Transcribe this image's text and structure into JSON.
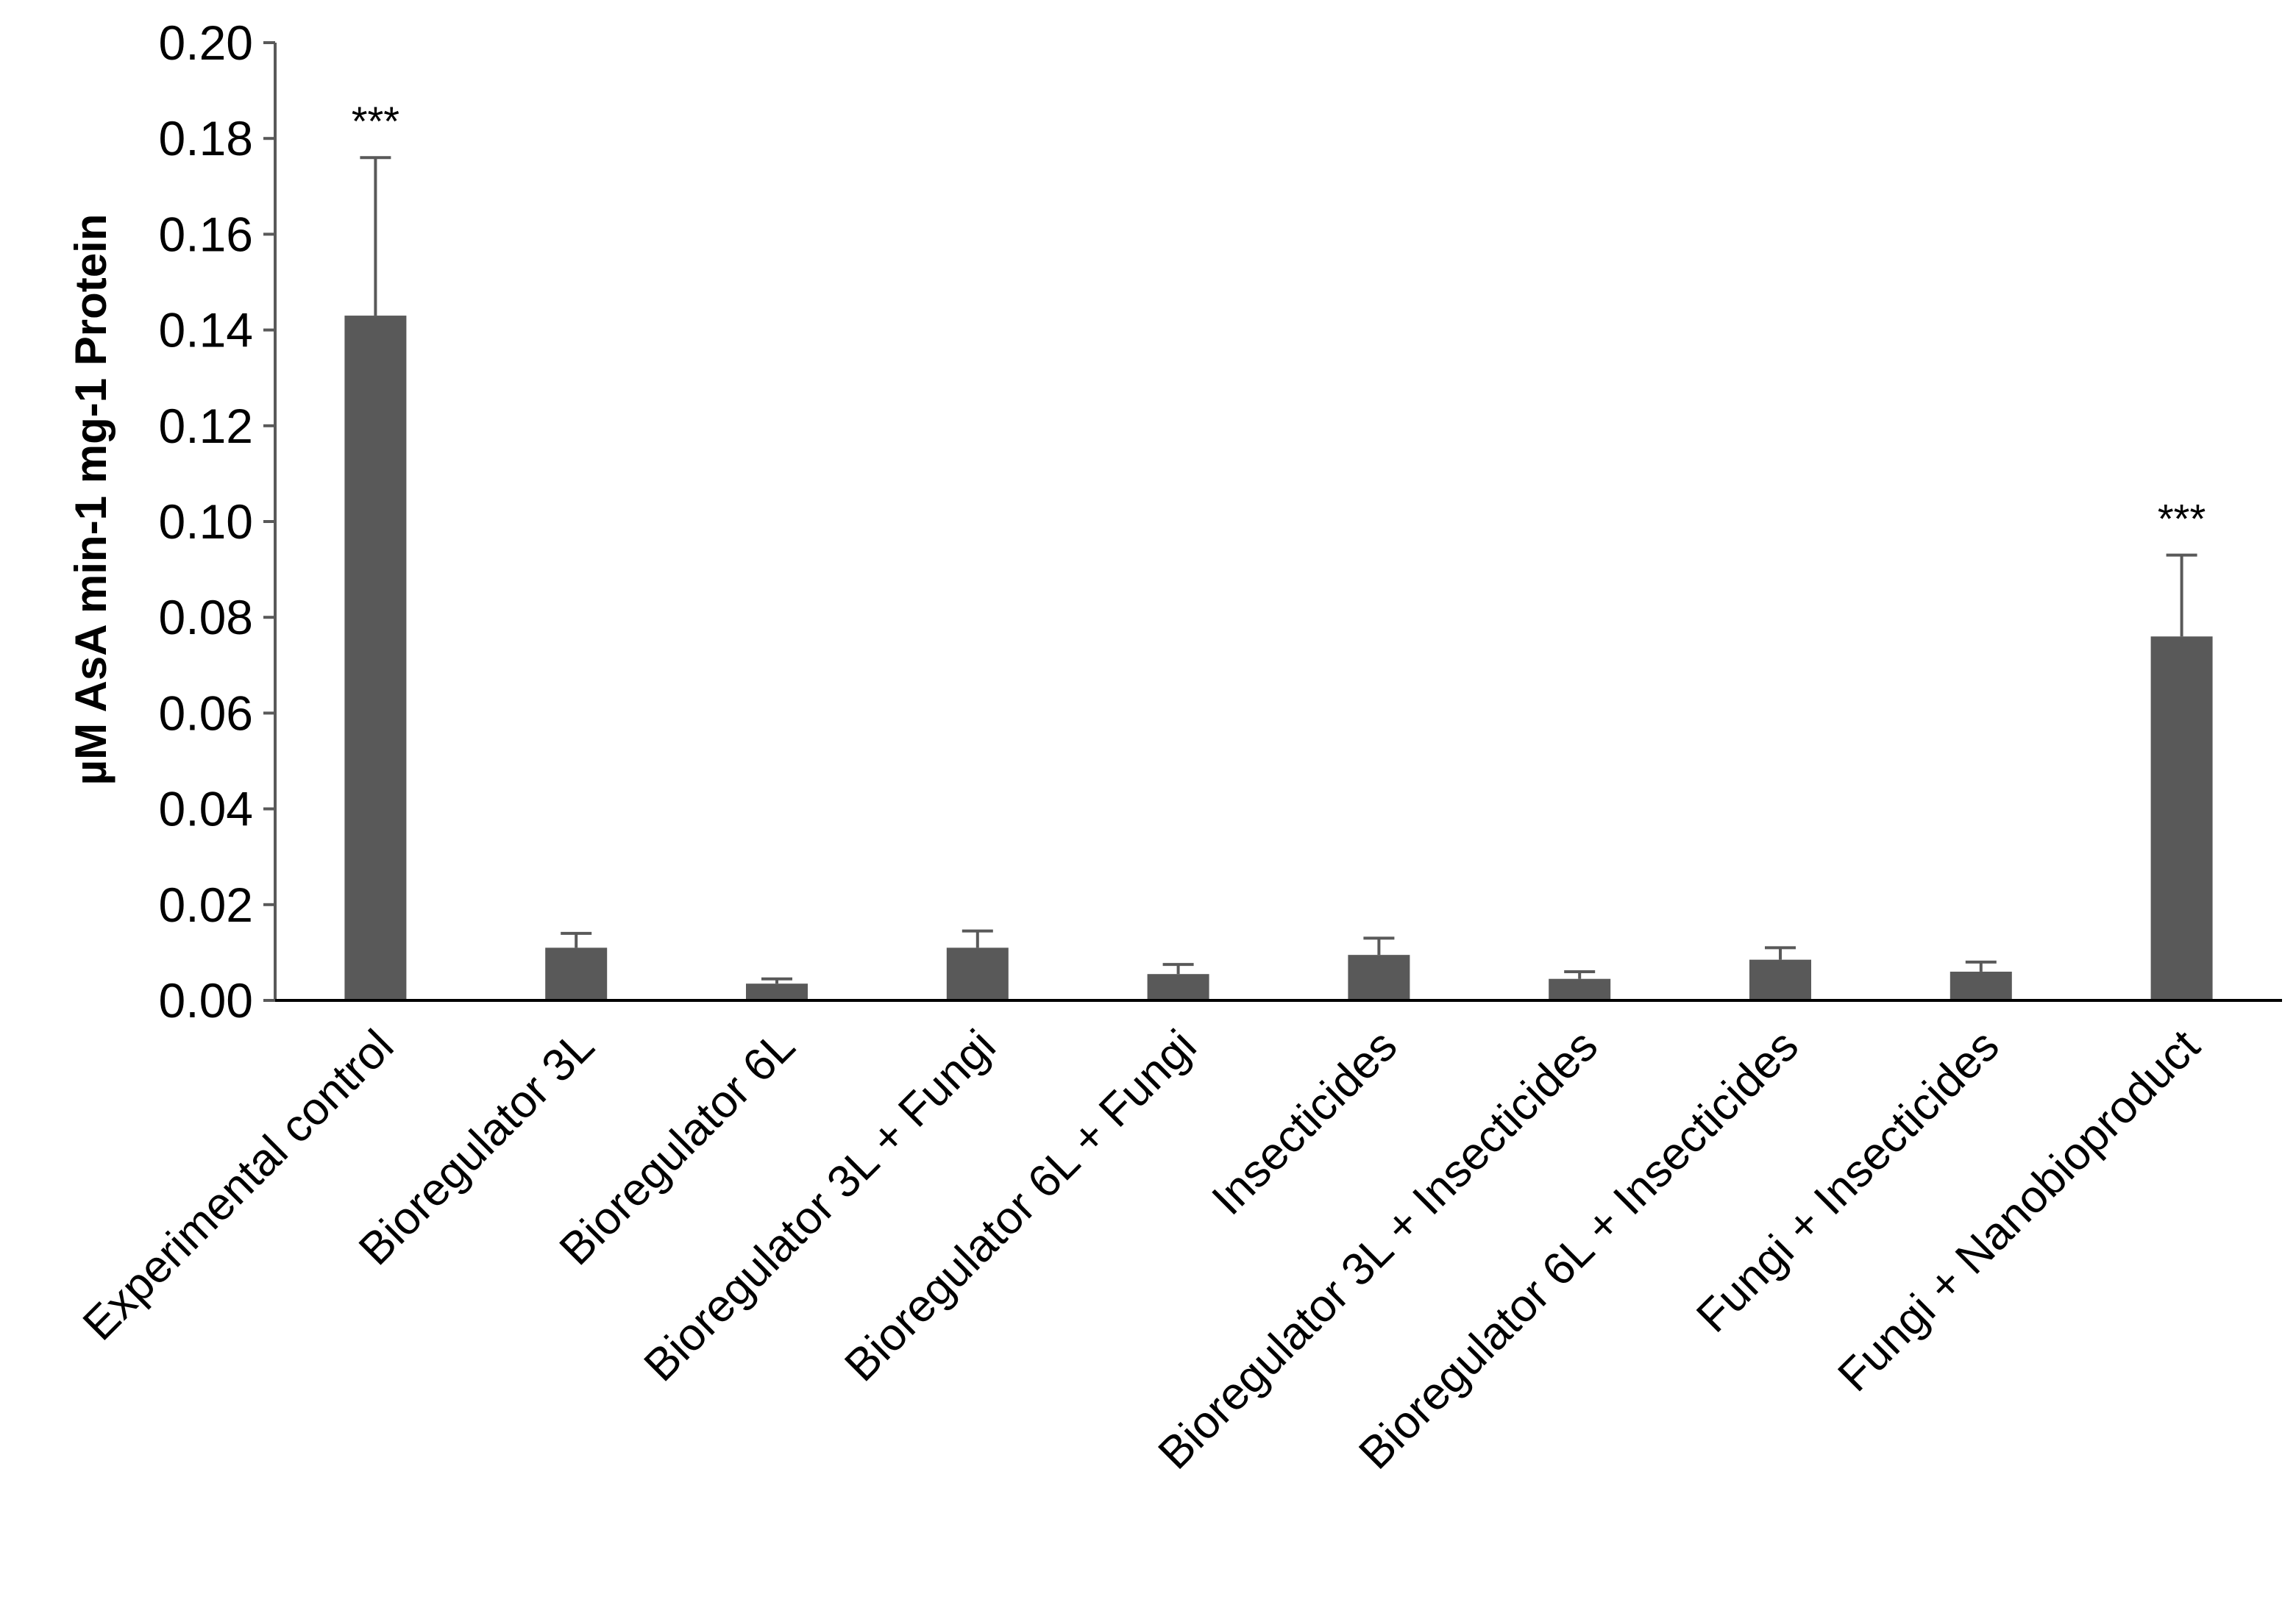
{
  "chart_data": {
    "type": "bar",
    "title": "",
    "xlabel": "",
    "ylabel": "µM AsA min-1 mg-1 Protein",
    "ylim": [
      0,
      0.2
    ],
    "yticks": [
      "0.00",
      "0.02",
      "0.04",
      "0.06",
      "0.08",
      "0.10",
      "0.12",
      "0.14",
      "0.16",
      "0.18",
      "0.20"
    ],
    "grid": false,
    "legend": "none",
    "bar_color": "#595959",
    "categories": [
      "Experimental control",
      "Bioregulator 3L",
      "Bioregulator 6L",
      "Bioregulator 3L + Fungi",
      "Bioregulator 6L + Fungi",
      "Insecticides",
      "Bioregulator 3L + Insecticides",
      "Bioregulator 6L + Insecticides",
      "Fungi + Insecticides",
      "Fungi + Nanobioproduct"
    ],
    "values": [
      0.143,
      0.011,
      0.0035,
      0.011,
      0.0055,
      0.0095,
      0.0045,
      0.0085,
      0.006,
      0.076
    ],
    "errors": [
      0.033,
      0.003,
      0.001,
      0.0035,
      0.002,
      0.0035,
      0.0015,
      0.0025,
      0.002,
      0.017
    ],
    "annotations": [
      "***",
      "",
      "",
      "",
      "",
      "",
      "",
      "",
      "",
      "***"
    ]
  }
}
